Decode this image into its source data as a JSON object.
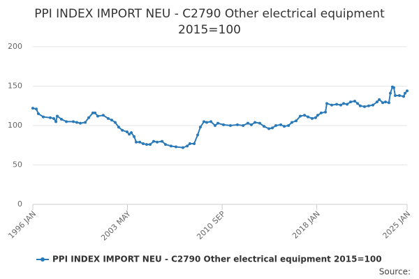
{
  "chart_data": {
    "type": "line",
    "title": [
      "PPI INDEX IMPORT NEU - C2790 Other electrical equipment",
      "2015=100"
    ],
    "source": "Source:",
    "x": [
      1996.0,
      1996.27,
      1996.43,
      1996.81,
      1997.35,
      1997.62,
      1997.79,
      1997.89,
      1998.22,
      1998.6,
      1999.14,
      1999.41,
      1999.68,
      2000.06,
      2000.33,
      2000.65,
      2000.82,
      2001.03,
      2001.46,
      2001.84,
      2002.11,
      2002.38,
      2002.65,
      2002.93,
      2003.3,
      2003.47,
      2003.63,
      2003.85,
      2004.01,
      2004.28,
      2004.55,
      2004.82,
      2005.09,
      2005.36,
      2005.63,
      2006.01,
      2006.28,
      2006.71,
      2007.09,
      2007.63,
      2007.96,
      2008.17,
      2008.5,
      2008.77,
      2008.98,
      2009.26,
      2009.47,
      2009.8,
      2010.12,
      2010.34,
      2010.77,
      2011.31,
      2011.85,
      2012.29,
      2012.66,
      2012.93,
      2013.21,
      2013.58,
      2013.91,
      2014.29,
      2014.56,
      2014.83,
      2015.21,
      2015.48,
      2015.81,
      2016.07,
      2016.4,
      2016.72,
      2017.05,
      2017.32,
      2017.64,
      2017.91,
      2018.07,
      2018.34,
      2018.67,
      2018.78,
      2019.16,
      2019.54,
      2019.86,
      2020.08,
      2020.35,
      2020.62,
      2020.94,
      2021.16,
      2021.37,
      2021.7,
      2022.02,
      2022.35,
      2022.67,
      2022.84,
      2023.11,
      2023.32,
      2023.59,
      2023.7,
      2023.86,
      2023.97,
      2024.08,
      2024.4,
      2024.73,
      2024.84,
      2025.0
    ],
    "series": [
      {
        "name": "PPI INDEX IMPORT NEU - C2790 Other electrical equipment 2015=100",
        "color": "#2a7ab9",
        "values": [
          122,
          121,
          115,
          111,
          110,
          109,
          105,
          112,
          108,
          105,
          105,
          104,
          103,
          104,
          110,
          116,
          116,
          112,
          113,
          109,
          107,
          104,
          98,
          94,
          92,
          89,
          91,
          86,
          79,
          79,
          77,
          76,
          76,
          80,
          79,
          80,
          76,
          74,
          73,
          72,
          74,
          77,
          77,
          88,
          98,
          105,
          104,
          105,
          100,
          103,
          101,
          100,
          101,
          100,
          103,
          101,
          104,
          103,
          99,
          96,
          97,
          100,
          101,
          99,
          100,
          104,
          106,
          112,
          113,
          111,
          109,
          110,
          113,
          116,
          117,
          128,
          126,
          127,
          126,
          128,
          127,
          130,
          131,
          128,
          125,
          124,
          125,
          126,
          130,
          133,
          129,
          130,
          129,
          141,
          149,
          148,
          138,
          138,
          137,
          141,
          144
        ]
      }
    ],
    "xlim": [
      1996,
      2025
    ],
    "xticks": [
      {
        "value": 1996,
        "label": "1996 JAN"
      },
      {
        "value": 2003.333,
        "label": "2003 MAY"
      },
      {
        "value": 2010.667,
        "label": "2010 SEP"
      },
      {
        "value": 2018,
        "label": "2018 JAN"
      },
      {
        "value": 2025,
        "label": "2025 JAN"
      }
    ],
    "ylim": [
      0,
      200
    ],
    "yticks": [
      0,
      50,
      100,
      150,
      200
    ],
    "grid": true,
    "legend": "bottom"
  }
}
